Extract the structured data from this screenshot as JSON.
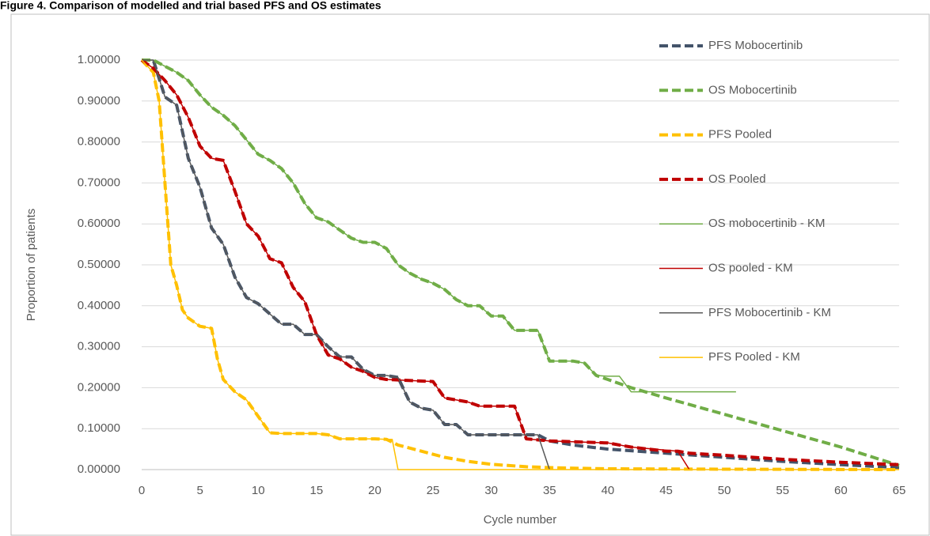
{
  "chart_data": {
    "type": "line",
    "title": "Figure 4. Comparison of modelled and trial based PFS and OS estimates",
    "x_label": "Cycle number",
    "y_label": "Proportion of patients",
    "xlim": [
      0,
      65
    ],
    "ylim": [
      0,
      1
    ],
    "xticks": [
      0,
      5,
      10,
      15,
      20,
      25,
      30,
      35,
      40,
      45,
      50,
      55,
      60,
      65
    ],
    "yticks": [
      {
        "value": 0,
        "label": "0.00000"
      },
      {
        "value": 0.1,
        "label": "0.10000"
      },
      {
        "value": 0.2,
        "label": "0.20000"
      },
      {
        "value": 0.3,
        "label": "0.30000"
      },
      {
        "value": 0.4,
        "label": "0.40000"
      },
      {
        "value": 0.5,
        "label": "0.50000"
      },
      {
        "value": 0.6,
        "label": "0.60000"
      },
      {
        "value": 0.7,
        "label": "0.70000"
      },
      {
        "value": 0.8,
        "label": "0.80000"
      },
      {
        "value": 0.9,
        "label": "0.90000"
      },
      {
        "value": 1,
        "label": "1.00000"
      }
    ],
    "grid": true,
    "legend": "upper right",
    "series": [
      {
        "name": "PFS Mobocertinib",
        "color": "#44546a",
        "line_style": "dashed",
        "x": [
          0,
          1,
          2,
          3,
          4,
          5,
          6,
          7,
          8,
          9,
          10,
          11,
          12,
          13,
          14,
          15,
          16,
          17,
          18,
          19,
          20,
          21,
          22,
          23,
          24,
          25,
          26,
          27,
          28,
          30,
          34,
          35,
          37,
          40,
          45,
          50,
          55,
          60,
          65
        ],
        "values": [
          1,
          1,
          0.91,
          0.89,
          0.76,
          0.69,
          0.59,
          0.55,
          0.47,
          0.42,
          0.405,
          0.38,
          0.355,
          0.355,
          0.33,
          0.33,
          0.3,
          0.275,
          0.275,
          0.245,
          0.23,
          0.23,
          0.225,
          0.165,
          0.15,
          0.145,
          0.11,
          0.11,
          0.085,
          0.085,
          0.085,
          0.07,
          0.06,
          0.05,
          0.04,
          0.03,
          0.02,
          0.012,
          0.005
        ]
      },
      {
        "name": "OS Mobocertinib",
        "color": "#70ad47",
        "line_style": "dashed",
        "x": [
          0,
          1,
          2,
          3,
          4,
          5,
          6,
          7,
          8,
          9,
          10,
          11,
          12,
          13,
          14,
          15,
          16,
          17,
          18,
          19,
          20,
          21,
          22,
          23,
          24,
          25,
          26,
          27,
          28,
          29,
          30,
          31,
          32,
          33,
          34,
          35,
          36,
          37,
          38,
          39,
          40,
          42,
          45,
          50,
          55,
          60,
          65
        ],
        "values": [
          1,
          1,
          0.985,
          0.97,
          0.95,
          0.915,
          0.885,
          0.865,
          0.84,
          0.805,
          0.77,
          0.755,
          0.735,
          0.7,
          0.65,
          0.615,
          0.605,
          0.585,
          0.565,
          0.555,
          0.555,
          0.54,
          0.5,
          0.48,
          0.465,
          0.455,
          0.44,
          0.415,
          0.4,
          0.4,
          0.375,
          0.375,
          0.34,
          0.34,
          0.34,
          0.265,
          0.265,
          0.265,
          0.26,
          0.23,
          0.22,
          0.2,
          0.175,
          0.135,
          0.095,
          0.055,
          0.01
        ]
      },
      {
        "name": "PFS Pooled",
        "color": "#ffc000",
        "line_style": "dashed",
        "x": [
          0,
          1,
          1.5,
          2,
          2.5,
          3,
          3.5,
          4,
          5,
          6,
          6.5,
          7,
          8,
          9,
          10,
          11,
          12,
          15,
          16,
          17,
          20,
          21,
          22,
          24,
          26,
          28,
          30,
          33,
          36,
          40,
          50,
          65
        ],
        "values": [
          1,
          0.97,
          0.9,
          0.7,
          0.5,
          0.45,
          0.39,
          0.37,
          0.35,
          0.345,
          0.27,
          0.22,
          0.19,
          0.17,
          0.13,
          0.09,
          0.088,
          0.088,
          0.085,
          0.075,
          0.075,
          0.074,
          0.06,
          0.045,
          0.03,
          0.02,
          0.013,
          0.007,
          0.004,
          0.002,
          0.001,
          0
        ]
      },
      {
        "name": "OS Pooled",
        "color": "#c00000",
        "line_style": "dashed",
        "x": [
          0,
          1,
          2,
          3,
          4,
          5,
          6,
          7,
          8,
          9,
          10,
          11,
          12,
          13,
          14,
          15,
          16,
          17,
          18,
          19,
          20,
          21,
          25,
          26,
          27,
          28,
          29,
          32,
          33,
          35,
          40,
          42,
          45,
          46,
          47,
          50,
          55,
          60,
          65
        ],
        "values": [
          1,
          0.98,
          0.95,
          0.915,
          0.86,
          0.79,
          0.76,
          0.755,
          0.68,
          0.6,
          0.57,
          0.515,
          0.505,
          0.445,
          0.41,
          0.33,
          0.28,
          0.27,
          0.25,
          0.24,
          0.225,
          0.22,
          0.215,
          0.175,
          0.17,
          0.165,
          0.155,
          0.155,
          0.075,
          0.07,
          0.065,
          0.055,
          0.045,
          0.045,
          0.04,
          0.035,
          0.025,
          0.018,
          0.012
        ]
      },
      {
        "name": "OS mobocertinib - KM",
        "color": "#70ad47",
        "line_style": "solid",
        "x": [
          0,
          1,
          2,
          3,
          4,
          5,
          6,
          7,
          8,
          9,
          10,
          11,
          12,
          13,
          14,
          15,
          16,
          17,
          18,
          19,
          20,
          21,
          22,
          23,
          24,
          25,
          26,
          27,
          28,
          29,
          30,
          31,
          32,
          33,
          34,
          35,
          36,
          37,
          38,
          39,
          40,
          41,
          42,
          51
        ],
        "values": [
          1,
          1,
          0.985,
          0.97,
          0.95,
          0.915,
          0.885,
          0.865,
          0.84,
          0.805,
          0.77,
          0.755,
          0.735,
          0.7,
          0.65,
          0.615,
          0.605,
          0.585,
          0.565,
          0.555,
          0.555,
          0.54,
          0.5,
          0.48,
          0.465,
          0.455,
          0.44,
          0.415,
          0.4,
          0.4,
          0.375,
          0.375,
          0.34,
          0.34,
          0.34,
          0.265,
          0.265,
          0.265,
          0.26,
          0.23,
          0.228,
          0.228,
          0.19,
          0.19
        ]
      },
      {
        "name": "OS pooled - KM",
        "color": "#c00000",
        "line_style": "solid",
        "x": [
          0,
          1,
          2,
          3,
          4,
          5,
          6,
          7,
          8,
          9,
          10,
          11,
          12,
          13,
          14,
          15,
          16,
          17,
          18,
          19,
          20,
          21,
          25,
          26,
          27,
          28,
          29,
          32,
          33,
          35,
          40,
          42,
          46,
          47
        ],
        "values": [
          1,
          0.98,
          0.95,
          0.915,
          0.86,
          0.79,
          0.76,
          0.755,
          0.68,
          0.6,
          0.57,
          0.515,
          0.505,
          0.445,
          0.41,
          0.33,
          0.28,
          0.27,
          0.25,
          0.24,
          0.225,
          0.22,
          0.215,
          0.175,
          0.17,
          0.165,
          0.155,
          0.155,
          0.075,
          0.07,
          0.065,
          0.055,
          0.045,
          0
        ]
      },
      {
        "name": "PFS Mobocertinib - KM",
        "color": "#595959",
        "line_style": "solid",
        "x": [
          0,
          1,
          2,
          3,
          4,
          5,
          6,
          7,
          8,
          9,
          10,
          11,
          12,
          13,
          14,
          15,
          16,
          17,
          18,
          19,
          20,
          21,
          22,
          23,
          24,
          25,
          26,
          27,
          28,
          30,
          34,
          35
        ],
        "values": [
          1,
          1,
          0.91,
          0.89,
          0.76,
          0.69,
          0.59,
          0.55,
          0.47,
          0.42,
          0.405,
          0.38,
          0.355,
          0.355,
          0.33,
          0.33,
          0.3,
          0.275,
          0.275,
          0.245,
          0.23,
          0.23,
          0.225,
          0.165,
          0.15,
          0.145,
          0.11,
          0.11,
          0.085,
          0.085,
          0.085,
          0
        ]
      },
      {
        "name": "PFS Pooled - KM",
        "color": "#ffc000",
        "line_style": "solid",
        "x": [
          0,
          1,
          1.5,
          2,
          2.5,
          3,
          3.5,
          4,
          5,
          6,
          6.5,
          7,
          8,
          9,
          10,
          11,
          12,
          15,
          16,
          17,
          20,
          21,
          21.5,
          22,
          65
        ],
        "values": [
          1,
          0.97,
          0.9,
          0.7,
          0.5,
          0.45,
          0.39,
          0.37,
          0.35,
          0.345,
          0.27,
          0.22,
          0.19,
          0.17,
          0.13,
          0.09,
          0.088,
          0.088,
          0.085,
          0.075,
          0.075,
          0.074,
          0.074,
          0,
          0
        ]
      }
    ]
  }
}
